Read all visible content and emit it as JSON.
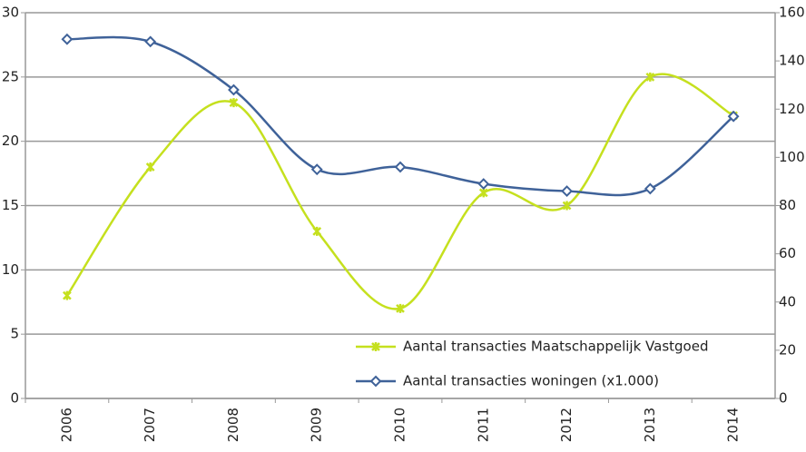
{
  "chart_data": {
    "type": "line",
    "categories": [
      "2006",
      "2007",
      "2008",
      "2009",
      "2010",
      "2011",
      "2012",
      "2013",
      "2014"
    ],
    "series": [
      {
        "name": "Aantal transacties Maatschappelijk Vastgoed",
        "color": "#c5e01e",
        "marker": "x",
        "values": [
          8,
          18,
          23,
          13,
          7,
          16,
          15,
          25,
          22
        ]
      },
      {
        "name": "Aantal transacties woningen (x1.000)",
        "color": "#3f6299",
        "marker": "diamond",
        "axis": "y2",
        "values": [
          149,
          148,
          128,
          95,
          96,
          89,
          86,
          87,
          117
        ]
      }
    ],
    "ylim": [
      0,
      30
    ],
    "yticks": [
      0,
      5,
      10,
      15,
      20,
      25,
      30
    ],
    "y2lim": [
      0,
      160
    ],
    "y2ticks": [
      0,
      20,
      40,
      60,
      80,
      100,
      120,
      140,
      160
    ],
    "grid": true,
    "smooth": true,
    "legend": "lower right"
  }
}
